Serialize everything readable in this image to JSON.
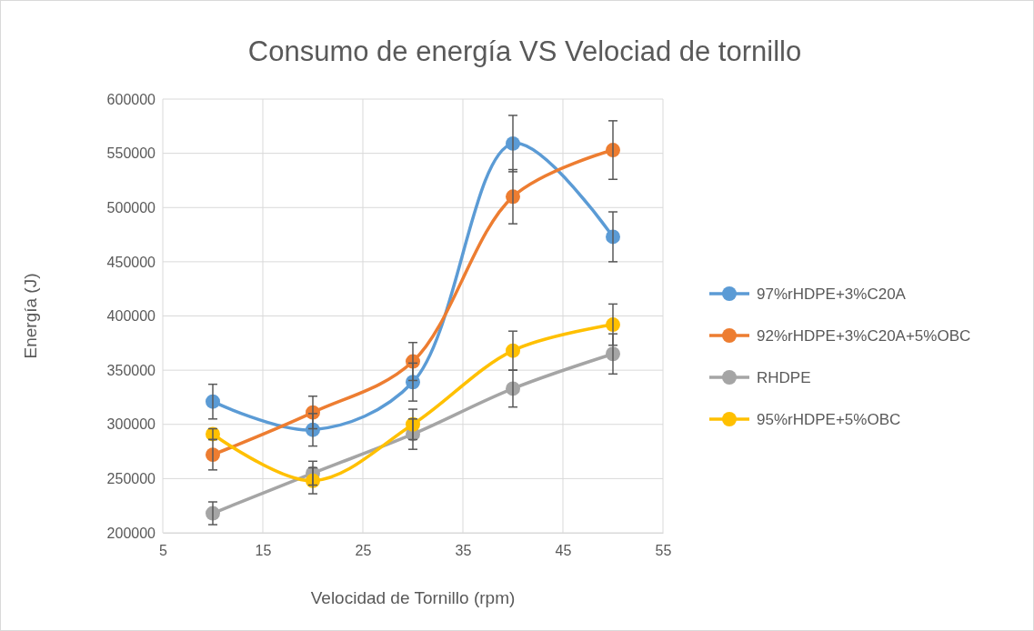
{
  "chart_data": {
    "type": "line",
    "title": "Consumo de energía VS Velociad de tornillo",
    "xlabel": "Velocidad de Tornillo (rpm)",
    "ylabel": "Energía (J)",
    "x": [
      10,
      20,
      30,
      40,
      50
    ],
    "series": [
      {
        "name": "97%rHDPE+3%C20A",
        "color": "#5b9bd5",
        "values": [
          321000,
          295000,
          339000,
          559000,
          473000
        ],
        "errors": [
          16000,
          15000,
          17500,
          26000,
          23000
        ]
      },
      {
        "name": "92%rHDPE+3%C20A+5%OBC",
        "color": "#ed7d31",
        "values": [
          272000,
          311000,
          358000,
          510000,
          553000
        ],
        "errors": [
          14000,
          15000,
          17500,
          25000,
          27000
        ]
      },
      {
        "name": "RHDPE",
        "color": "#a5a5a5",
        "values": [
          218000,
          255000,
          291000,
          333000,
          365000
        ],
        "errors": [
          10500,
          11000,
          14000,
          17000,
          18500
        ]
      },
      {
        "name": "95%rHDPE+5%OBC",
        "color": "#ffc000",
        "values": [
          291000,
          248000,
          300000,
          368000,
          392000
        ],
        "errors": [
          5000,
          12000,
          14000,
          18000,
          19000
        ]
      }
    ],
    "xlim": [
      5,
      55
    ],
    "xticks": [
      5,
      15,
      25,
      35,
      45,
      55
    ],
    "ylim": [
      200000,
      600000
    ],
    "yticks": [
      200000,
      250000,
      300000,
      350000,
      400000,
      450000,
      500000,
      550000,
      600000
    ],
    "grid": true,
    "legend": "right",
    "marker": "circle",
    "line_style": "solid"
  }
}
